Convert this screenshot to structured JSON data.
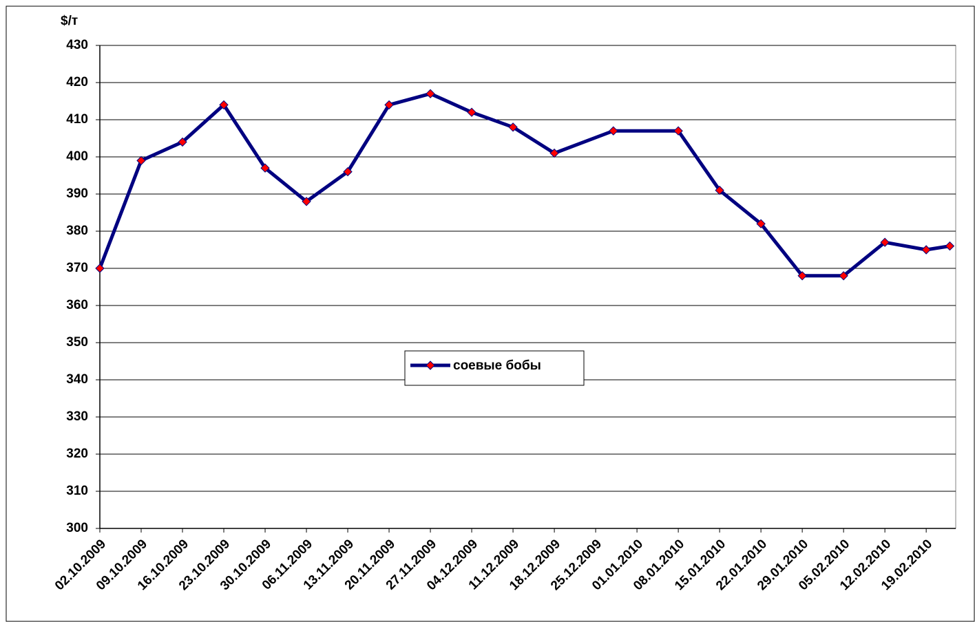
{
  "chart_data": {
    "type": "line",
    "ylabel": "$/т",
    "x": [
      "2009-10-02",
      "2009-10-09",
      "2009-10-16",
      "2009-10-23",
      "2009-10-30",
      "2009-11-06",
      "2009-11-13",
      "2009-11-20",
      "2009-11-27",
      "2009-12-04",
      "2009-12-11",
      "2009-12-18",
      "2009-12-28",
      "2010-01-08",
      "2010-01-15",
      "2010-01-22",
      "2010-01-29",
      "2010-02-05",
      "2010-02-12",
      "2010-02-19",
      "2010-02-23"
    ],
    "series": [
      {
        "name": "соевые бобы",
        "color": "#000080",
        "marker_color": "#ff0000",
        "values": [
          370,
          399,
          404,
          414,
          397,
          388,
          396,
          414,
          417,
          412,
          408,
          401,
          407,
          407,
          391,
          382,
          368,
          368,
          377,
          375,
          376
        ]
      }
    ],
    "xlim": [
      "2009-10-02",
      "2010-02-24"
    ],
    "xticks": [
      {
        "value": "2009-10-02",
        "label": "02.10.2009"
      },
      {
        "value": "2009-10-09",
        "label": "09.10.2009"
      },
      {
        "value": "2009-10-16",
        "label": "16.10.2009"
      },
      {
        "value": "2009-10-23",
        "label": "23.10.2009"
      },
      {
        "value": "2009-10-30",
        "label": "30.10.2009"
      },
      {
        "value": "2009-11-06",
        "label": "06.11.2009"
      },
      {
        "value": "2009-11-13",
        "label": "13.11.2009"
      },
      {
        "value": "2009-11-20",
        "label": "20.11.2009"
      },
      {
        "value": "2009-11-27",
        "label": "27.11.2009"
      },
      {
        "value": "2009-12-04",
        "label": "04.12.2009"
      },
      {
        "value": "2009-12-11",
        "label": "11.12.2009"
      },
      {
        "value": "2009-12-18",
        "label": "18.12.2009"
      },
      {
        "value": "2009-12-25",
        "label": "25.12.2009"
      },
      {
        "value": "2010-01-01",
        "label": "01.01.2010"
      },
      {
        "value": "2010-01-08",
        "label": "08.01.2010"
      },
      {
        "value": "2010-01-15",
        "label": "15.01.2010"
      },
      {
        "value": "2010-01-22",
        "label": "22.01.2010"
      },
      {
        "value": "2010-01-29",
        "label": "29.01.2010"
      },
      {
        "value": "2010-02-05",
        "label": "05.02.2010"
      },
      {
        "value": "2010-02-12",
        "label": "12.02.2010"
      },
      {
        "value": "2010-02-19",
        "label": "19.02.2010"
      }
    ],
    "ylim": [
      300,
      430
    ],
    "yticks": [
      300,
      310,
      320,
      330,
      340,
      350,
      360,
      370,
      380,
      390,
      400,
      410,
      420,
      430
    ],
    "grid": true
  }
}
